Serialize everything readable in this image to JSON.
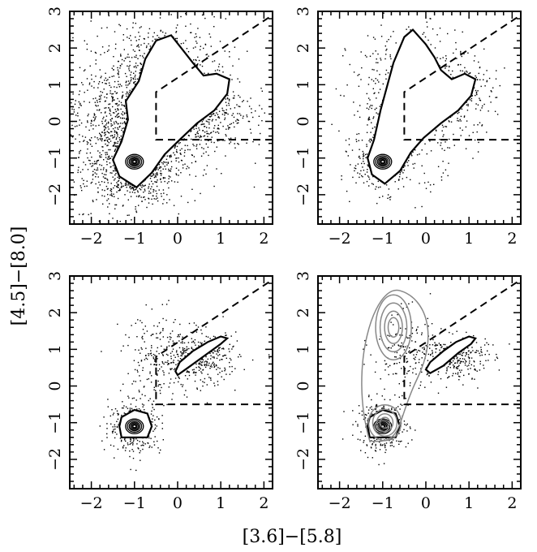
{
  "chart_data": {
    "type": "scatter",
    "layout": "2x2 panel grid, shared axes",
    "xlabel": "[3.6]−[5.8]",
    "ylabel": "[4.5]−[8.0]",
    "xlim": [
      -2.5,
      2.2
    ],
    "ylim": [
      -2.8,
      3.0
    ],
    "x_ticks": [
      -2,
      -1,
      0,
      1,
      2
    ],
    "y_ticks": [
      -2,
      -1,
      0,
      1,
      2,
      3
    ],
    "x_tick_labels": [
      "−2",
      "−1",
      "0",
      "1",
      "2"
    ],
    "y_tick_labels": [
      "−2",
      "−1",
      "0",
      "1",
      "2",
      "3"
    ],
    "grid": false,
    "colors": {
      "points": "#000000",
      "contours": "#000000",
      "overlay_contours": "#888888",
      "selection_box": "#000000"
    },
    "selection_box": {
      "style": "dashed",
      "lower_y": -0.5,
      "left_x": -0.5,
      "upper_left_corner": [
        -0.5,
        0.8
      ],
      "diagonal_end": [
        2.2,
        2.9
      ]
    },
    "panels": [
      {
        "position": "top-left",
        "description": "dense point cloud with large outer density contour",
        "core_contour_center": [
          -1.0,
          -1.1
        ],
        "outline": [
          [
            -0.95,
            -1.8
          ],
          [
            -0.6,
            -1.4
          ],
          [
            -0.3,
            -0.9
          ],
          [
            0.05,
            -0.5
          ],
          [
            0.45,
            -0.05
          ],
          [
            0.85,
            0.3
          ],
          [
            1.15,
            0.75
          ],
          [
            1.2,
            1.15
          ],
          [
            0.9,
            1.3
          ],
          [
            0.6,
            1.25
          ],
          [
            0.35,
            1.6
          ],
          [
            0.15,
            1.9
          ],
          [
            -0.15,
            2.35
          ],
          [
            -0.5,
            2.2
          ],
          [
            -0.75,
            1.7
          ],
          [
            -0.9,
            1.1
          ],
          [
            -1.2,
            0.55
          ],
          [
            -1.15,
            0.05
          ],
          [
            -1.3,
            -0.55
          ],
          [
            -1.5,
            -1.05
          ],
          [
            -1.35,
            -1.5
          ]
        ],
        "clusters": [
          {
            "cx": -1.0,
            "cy": -1.1,
            "sx": 0.45,
            "sy": 0.55,
            "n": 800
          },
          {
            "cx": -0.5,
            "cy": 0.6,
            "sx": 0.8,
            "sy": 1.1,
            "n": 1200
          },
          {
            "cx": 0.2,
            "cy": 0.4,
            "sx": 0.7,
            "sy": 0.6,
            "n": 600
          },
          {
            "cx": -1.4,
            "cy": -0.4,
            "sx": 0.6,
            "sy": 0.9,
            "n": 500
          }
        ]
      },
      {
        "position": "top-right",
        "description": "point cloud with outer density contour, fewer points",
        "core_contour_center": [
          -1.0,
          -1.1
        ],
        "outline": [
          [
            -0.95,
            -1.7
          ],
          [
            -0.6,
            -1.35
          ],
          [
            -0.35,
            -0.85
          ],
          [
            -0.05,
            -0.45
          ],
          [
            0.35,
            -0.05
          ],
          [
            0.75,
            0.3
          ],
          [
            1.05,
            0.7
          ],
          [
            1.15,
            1.15
          ],
          [
            0.9,
            1.3
          ],
          [
            0.6,
            1.15
          ],
          [
            0.35,
            1.4
          ],
          [
            0.2,
            1.75
          ],
          [
            0.0,
            2.1
          ],
          [
            -0.3,
            2.5
          ],
          [
            -0.5,
            2.3
          ],
          [
            -0.75,
            1.6
          ],
          [
            -0.9,
            0.95
          ],
          [
            -1.05,
            0.3
          ],
          [
            -1.2,
            -0.5
          ],
          [
            -1.35,
            -1.0
          ],
          [
            -1.25,
            -1.45
          ]
        ],
        "clusters": [
          {
            "cx": -1.0,
            "cy": -1.1,
            "sx": 0.35,
            "sy": 0.4,
            "n": 350
          },
          {
            "cx": -0.4,
            "cy": 0.6,
            "sx": 0.7,
            "sy": 1.0,
            "n": 500
          },
          {
            "cx": 0.6,
            "cy": 0.8,
            "sx": 0.5,
            "sy": 0.5,
            "n": 250
          }
        ]
      },
      {
        "position": "bottom-left",
        "description": "two compact groups: stellar locus and reddened group",
        "core_contour_center": [
          -1.0,
          -1.1
        ],
        "outline": [
          [
            -1.3,
            -1.4
          ],
          [
            -0.7,
            -1.4
          ],
          [
            -0.6,
            -1.1
          ],
          [
            -0.7,
            -0.75
          ],
          [
            -1.0,
            -0.65
          ],
          [
            -1.3,
            -0.85
          ],
          [
            -1.35,
            -1.1
          ]
        ],
        "outline2": [
          [
            0.0,
            0.3
          ],
          [
            0.3,
            0.55
          ],
          [
            0.65,
            0.85
          ],
          [
            1.0,
            1.15
          ],
          [
            1.15,
            1.3
          ],
          [
            1.0,
            1.35
          ],
          [
            0.7,
            1.2
          ],
          [
            0.35,
            0.95
          ],
          [
            0.05,
            0.65
          ],
          [
            -0.05,
            0.4
          ]
        ],
        "clusters": [
          {
            "cx": -1.0,
            "cy": -1.1,
            "sx": 0.3,
            "sy": 0.35,
            "n": 350
          },
          {
            "cx": 0.5,
            "cy": 0.75,
            "sx": 0.45,
            "sy": 0.35,
            "n": 350
          },
          {
            "cx": -0.4,
            "cy": 0.8,
            "sx": 0.45,
            "sy": 0.6,
            "n": 200
          }
        ]
      },
      {
        "position": "bottom-right",
        "description": "bottom-left distribution with grey density contours overlaid",
        "core_contour_center": [
          -1.0,
          -1.1
        ],
        "outline": [
          [
            -1.3,
            -1.4
          ],
          [
            -0.7,
            -1.4
          ],
          [
            -0.6,
            -1.1
          ],
          [
            -0.7,
            -0.75
          ],
          [
            -1.0,
            -0.65
          ],
          [
            -1.3,
            -0.85
          ],
          [
            -1.35,
            -1.1
          ]
        ],
        "outline2": [
          [
            0.1,
            0.35
          ],
          [
            0.4,
            0.55
          ],
          [
            0.75,
            0.9
          ],
          [
            1.05,
            1.15
          ],
          [
            1.15,
            1.3
          ],
          [
            1.0,
            1.35
          ],
          [
            0.7,
            1.2
          ],
          [
            0.4,
            0.95
          ],
          [
            0.1,
            0.65
          ],
          [
            0.0,
            0.45
          ]
        ],
        "overlay_contour_centers": [
          [
            -0.75,
            1.6
          ],
          [
            -0.95,
            -1.0
          ]
        ],
        "clusters": [
          {
            "cx": -1.0,
            "cy": -1.1,
            "sx": 0.3,
            "sy": 0.35,
            "n": 300
          },
          {
            "cx": 0.6,
            "cy": 0.8,
            "sx": 0.4,
            "sy": 0.3,
            "n": 300
          },
          {
            "cx": -0.5,
            "cy": 0.9,
            "sx": 0.4,
            "sy": 0.6,
            "n": 150
          }
        ]
      }
    ]
  }
}
